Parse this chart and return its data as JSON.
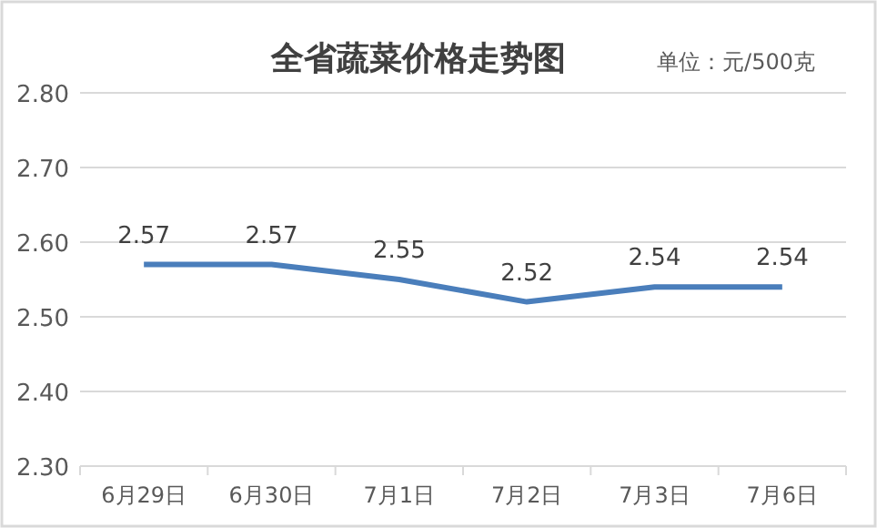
{
  "chart_data": {
    "type": "line",
    "title": "全省蔬菜价格走势图",
    "annotations": [
      "单位：元/500克"
    ],
    "categories": [
      "6月29日",
      "6月30日",
      "7月1日",
      "7月2日",
      "7月3日",
      "7月6日"
    ],
    "series": [
      {
        "color": "#4a7ebb",
        "values": [
          2.57,
          2.57,
          2.55,
          2.52,
          2.54,
          2.54
        ]
      }
    ],
    "ylim": [
      2.3,
      2.8
    ],
    "yticks": [
      {
        "value": 2.3,
        "label": "2.30"
      },
      {
        "value": 2.4,
        "label": "2.40"
      },
      {
        "value": 2.5,
        "label": "2.50"
      },
      {
        "value": 2.6,
        "label": "2.60"
      },
      {
        "value": 2.7,
        "label": "2.70"
      },
      {
        "value": 2.8,
        "label": "2.80"
      }
    ],
    "grid": "y",
    "data_labels": true,
    "line_style": "solid"
  }
}
